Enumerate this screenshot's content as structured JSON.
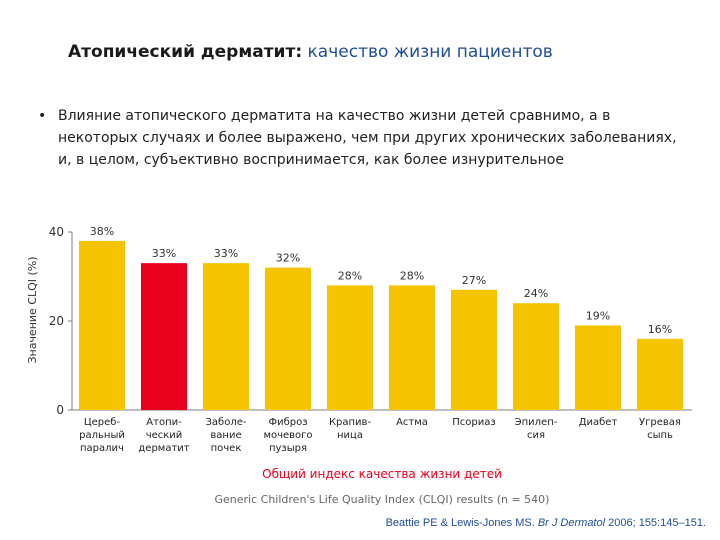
{
  "header": {
    "title_main": "Атопический дерматит:",
    "title_accent": " качество жизни пациентов"
  },
  "bullet": {
    "marker": "•",
    "text": "Влияние атопического дерматита на качество жизни детей сравнимо, а в некоторых случаях и более выражено, чем при других хронических заболеваниях, и, в целом, субъективно воспринимается, как более изнурительное"
  },
  "colors": {
    "bar": "#f5c400",
    "highlight": "#e8001c",
    "title_accent": "#1f4e96",
    "axis": "#7f7f7f"
  },
  "chart_data": {
    "type": "bar",
    "title": "",
    "ylabel": "Значение CLQI (%)",
    "xlabel": "Общий индекс качества жизни детей",
    "subtitle": "Generic Children's Life Quality Index (CLQI) results  (n = 540)",
    "ylim": [
      0,
      40
    ],
    "yticks": [
      0,
      20,
      40
    ],
    "categories": [
      [
        "Цереб-",
        "ральный",
        "паралич"
      ],
      [
        "Атопи-",
        "ческий",
        "дерматит"
      ],
      [
        "Заболе-",
        "вание",
        "почек"
      ],
      [
        "Фиброз",
        "мочевого",
        "пузыря"
      ],
      [
        "Крапив-",
        "ница"
      ],
      [
        "Астма"
      ],
      [
        "Псориаз"
      ],
      [
        "Эпилеп-",
        "сия"
      ],
      [
        "Диабет"
      ],
      [
        "Угревая",
        "сыпь"
      ]
    ],
    "values": [
      38,
      33,
      33,
      32,
      28,
      28,
      27,
      24,
      19,
      16
    ],
    "value_labels": [
      "38%",
      "33%",
      "33%",
      "32%",
      "28%",
      "28%",
      "27%",
      "24%",
      "19%",
      "16%"
    ],
    "highlight_index": 1
  },
  "citation": {
    "authors": "Beattie PE & Lewis-Jones MS. ",
    "journal": "Br J Dermatol",
    "details": " 2006; 155:145–151."
  }
}
